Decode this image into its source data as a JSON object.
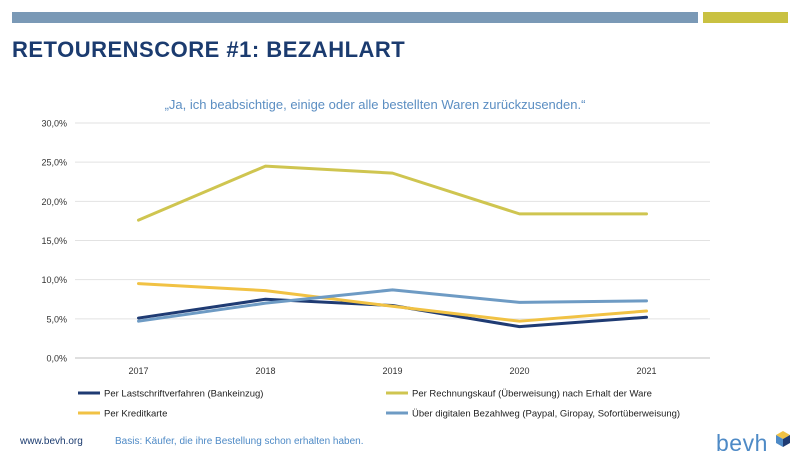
{
  "header": {
    "title": "RETOURENSCORE #1: BEZAHLART"
  },
  "footer": {
    "url": "www.bevh.org",
    "note": "Basis: Käufer, die ihre Bestellung schon erhalten haben.",
    "logo_text": "bevh"
  },
  "colors": {
    "top_bar": "#7a99b6",
    "accent_bar": "#c9c141",
    "title": "#1b3b6f",
    "chart_title": "#5b8ec2"
  },
  "chart_data": {
    "type": "line",
    "title": "„Ja, ich beabsichtige, einige oder alle bestellten Waren zurückzusenden.“",
    "xlabel": "",
    "ylabel": "",
    "x": [
      "2017",
      "2018",
      "2019",
      "2020",
      "2021"
    ],
    "ylim": [
      0,
      30
    ],
    "yticks": [
      0,
      5,
      10,
      15,
      20,
      25,
      30
    ],
    "ytick_labels": [
      "0,0%",
      "5,0%",
      "10,0%",
      "15,0%",
      "20,0%",
      "25,0%",
      "30,0%"
    ],
    "grid": true,
    "legend_position": "bottom",
    "series": [
      {
        "name": "Per Lastschriftverfahren (Bankeinzug)",
        "color": "#1f3b73",
        "values": [
          5.1,
          7.5,
          6.7,
          4.0,
          5.2
        ]
      },
      {
        "name": "Per Rechnungskauf (Überweisung) nach Erhalt der Ware",
        "color": "#cfc550",
        "values": [
          17.6,
          24.5,
          23.6,
          18.4,
          18.4
        ]
      },
      {
        "name": "Per Kreditkarte",
        "color": "#f1c244",
        "values": [
          9.5,
          8.6,
          6.6,
          4.7,
          6.0
        ]
      },
      {
        "name": "Über digitalen Bezahlweg (Paypal, Giropay, Sofortüberweisung)",
        "color": "#6e9bc4",
        "values": [
          4.7,
          7.0,
          8.7,
          7.1,
          7.3
        ]
      }
    ]
  }
}
